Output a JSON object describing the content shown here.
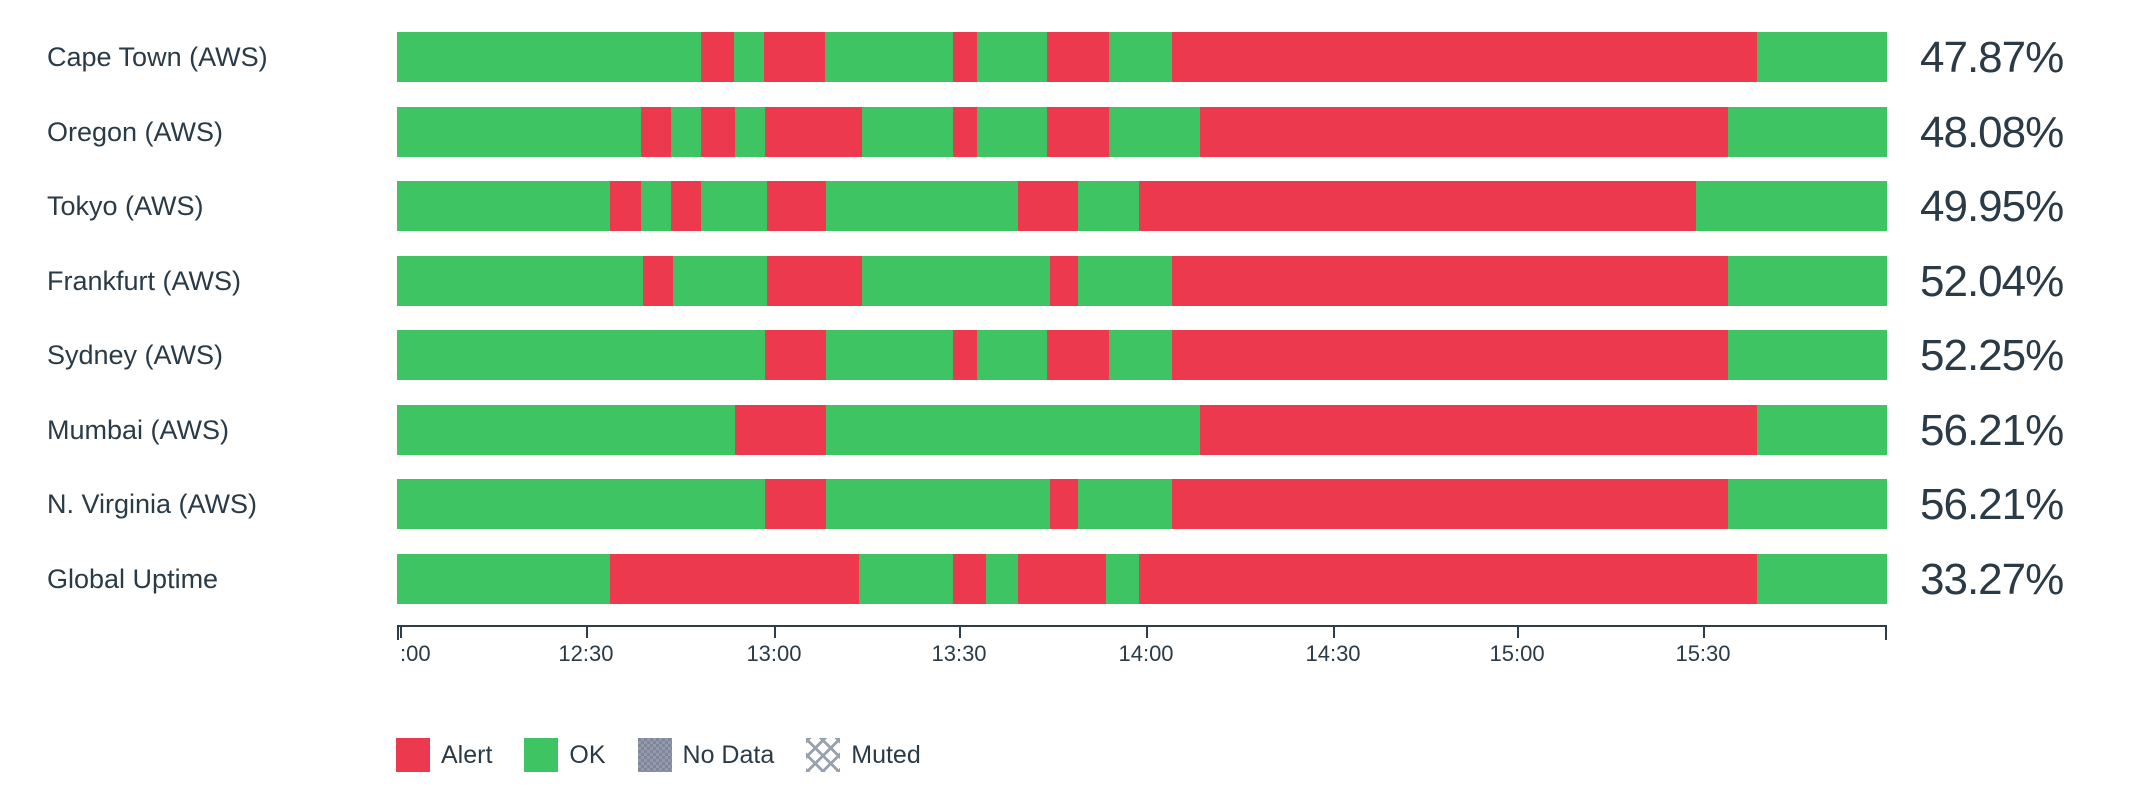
{
  "colors": {
    "ok": "#3EC462",
    "alert": "#EC394D",
    "no_data": "#7F8798",
    "muted_hatch": "#98A1AC",
    "text": "#2A3A46",
    "axis": "#2E3D49"
  },
  "legend": [
    {
      "label": "Alert",
      "swatch": "alert"
    },
    {
      "label": "OK",
      "swatch": "ok"
    },
    {
      "label": "No Data",
      "swatch": "no_data"
    },
    {
      "label": "Muted",
      "swatch": "muted"
    }
  ],
  "chart_data": {
    "type": "status-timeline-bar",
    "x_axis": {
      "ticks": [
        {
          "label": ":00",
          "pos_pct": 0.2,
          "align": "left"
        },
        {
          "label": "12:30",
          "pos_pct": 12.68
        },
        {
          "label": "13:00",
          "pos_pct": 25.3
        },
        {
          "label": "13:30",
          "pos_pct": 37.72
        },
        {
          "label": "14:00",
          "pos_pct": 50.27
        },
        {
          "label": "14:30",
          "pos_pct": 62.82
        },
        {
          "label": "15:00",
          "pos_pct": 75.17
        },
        {
          "label": "15:30",
          "pos_pct": 87.65
        }
      ],
      "end_caps": [
        0,
        100
      ]
    },
    "rows": [
      {
        "label": "Cape Town (AWS)",
        "uptime": "47.87%",
        "segments": [
          {
            "status": "ok",
            "from": 0,
            "to": 20.4
          },
          {
            "status": "alert",
            "from": 20.4,
            "to": 22.6
          },
          {
            "status": "ok",
            "from": 22.6,
            "to": 24.6
          },
          {
            "status": "alert",
            "from": 24.6,
            "to": 28.7
          },
          {
            "status": "ok",
            "from": 28.7,
            "to": 37.3
          },
          {
            "status": "alert",
            "from": 37.3,
            "to": 38.9
          },
          {
            "status": "ok",
            "from": 38.9,
            "to": 43.6
          },
          {
            "status": "alert",
            "from": 43.6,
            "to": 47.8
          },
          {
            "status": "ok",
            "from": 47.8,
            "to": 52.0
          },
          {
            "status": "alert",
            "from": 52.0,
            "to": 91.3
          },
          {
            "status": "ok",
            "from": 91.3,
            "to": 100
          }
        ]
      },
      {
        "label": "Oregon (AWS)",
        "uptime": "48.08%",
        "segments": [
          {
            "status": "ok",
            "from": 0,
            "to": 16.4
          },
          {
            "status": "alert",
            "from": 16.4,
            "to": 18.4
          },
          {
            "status": "ok",
            "from": 18.4,
            "to": 20.4
          },
          {
            "status": "alert",
            "from": 20.4,
            "to": 22.7
          },
          {
            "status": "ok",
            "from": 22.7,
            "to": 24.7
          },
          {
            "status": "alert",
            "from": 24.7,
            "to": 31.2
          },
          {
            "status": "ok",
            "from": 31.2,
            "to": 37.3
          },
          {
            "status": "alert",
            "from": 37.3,
            "to": 38.9
          },
          {
            "status": "ok",
            "from": 38.9,
            "to": 43.6
          },
          {
            "status": "alert",
            "from": 43.6,
            "to": 47.8
          },
          {
            "status": "ok",
            "from": 47.8,
            "to": 53.9
          },
          {
            "status": "alert",
            "from": 53.9,
            "to": 89.3
          },
          {
            "status": "ok",
            "from": 89.3,
            "to": 100
          }
        ]
      },
      {
        "label": "Tokyo (AWS)",
        "uptime": "49.95%",
        "segments": [
          {
            "status": "ok",
            "from": 0,
            "to": 14.3
          },
          {
            "status": "alert",
            "from": 14.3,
            "to": 16.4
          },
          {
            "status": "ok",
            "from": 16.4,
            "to": 18.4
          },
          {
            "status": "alert",
            "from": 18.4,
            "to": 20.4
          },
          {
            "status": "ok",
            "from": 20.4,
            "to": 24.8
          },
          {
            "status": "alert",
            "from": 24.8,
            "to": 28.8
          },
          {
            "status": "ok",
            "from": 28.8,
            "to": 41.7
          },
          {
            "status": "alert",
            "from": 41.7,
            "to": 45.7
          },
          {
            "status": "ok",
            "from": 45.7,
            "to": 49.8
          },
          {
            "status": "alert",
            "from": 49.8,
            "to": 87.2
          },
          {
            "status": "ok",
            "from": 87.2,
            "to": 100
          }
        ]
      },
      {
        "label": "Frankfurt (AWS)",
        "uptime": "52.04%",
        "segments": [
          {
            "status": "ok",
            "from": 0,
            "to": 16.5
          },
          {
            "status": "alert",
            "from": 16.5,
            "to": 18.5
          },
          {
            "status": "ok",
            "from": 18.5,
            "to": 24.8
          },
          {
            "status": "alert",
            "from": 24.8,
            "to": 31.2
          },
          {
            "status": "ok",
            "from": 31.2,
            "to": 43.8
          },
          {
            "status": "alert",
            "from": 43.8,
            "to": 45.7
          },
          {
            "status": "ok",
            "from": 45.7,
            "to": 52.0
          },
          {
            "status": "alert",
            "from": 52.0,
            "to": 89.3
          },
          {
            "status": "ok",
            "from": 89.3,
            "to": 100
          }
        ]
      },
      {
        "label": "Sydney (AWS)",
        "uptime": "52.25%",
        "segments": [
          {
            "status": "ok",
            "from": 0,
            "to": 24.7
          },
          {
            "status": "alert",
            "from": 24.7,
            "to": 28.8
          },
          {
            "status": "ok",
            "from": 28.8,
            "to": 37.3
          },
          {
            "status": "alert",
            "from": 37.3,
            "to": 38.9
          },
          {
            "status": "ok",
            "from": 38.9,
            "to": 43.6
          },
          {
            "status": "alert",
            "from": 43.6,
            "to": 47.8
          },
          {
            "status": "ok",
            "from": 47.8,
            "to": 52.0
          },
          {
            "status": "alert",
            "from": 52.0,
            "to": 89.3
          },
          {
            "status": "ok",
            "from": 89.3,
            "to": 100
          }
        ]
      },
      {
        "label": "Mumbai (AWS)",
        "uptime": "56.21%",
        "segments": [
          {
            "status": "ok",
            "from": 0,
            "to": 22.7
          },
          {
            "status": "alert",
            "from": 22.7,
            "to": 28.8
          },
          {
            "status": "ok",
            "from": 28.8,
            "to": 53.9
          },
          {
            "status": "alert",
            "from": 53.9,
            "to": 91.3
          },
          {
            "status": "ok",
            "from": 91.3,
            "to": 100
          }
        ]
      },
      {
        "label": "N. Virginia (AWS)",
        "uptime": "56.21%",
        "segments": [
          {
            "status": "ok",
            "from": 0,
            "to": 24.7
          },
          {
            "status": "alert",
            "from": 24.7,
            "to": 28.8
          },
          {
            "status": "ok",
            "from": 28.8,
            "to": 43.8
          },
          {
            "status": "alert",
            "from": 43.8,
            "to": 45.7
          },
          {
            "status": "ok",
            "from": 45.7,
            "to": 52.0
          },
          {
            "status": "alert",
            "from": 52.0,
            "to": 89.3
          },
          {
            "status": "ok",
            "from": 89.3,
            "to": 100
          }
        ]
      },
      {
        "label": "Global Uptime",
        "uptime": "33.27%",
        "segments": [
          {
            "status": "ok",
            "from": 0,
            "to": 14.3
          },
          {
            "status": "alert",
            "from": 14.3,
            "to": 31.0
          },
          {
            "status": "ok",
            "from": 31.0,
            "to": 37.3
          },
          {
            "status": "alert",
            "from": 37.3,
            "to": 39.5
          },
          {
            "status": "ok",
            "from": 39.5,
            "to": 41.7
          },
          {
            "status": "alert",
            "from": 41.7,
            "to": 47.6
          },
          {
            "status": "ok",
            "from": 47.6,
            "to": 49.8
          },
          {
            "status": "alert",
            "from": 49.8,
            "to": 91.3
          },
          {
            "status": "ok",
            "from": 91.3,
            "to": 100
          }
        ]
      }
    ]
  }
}
